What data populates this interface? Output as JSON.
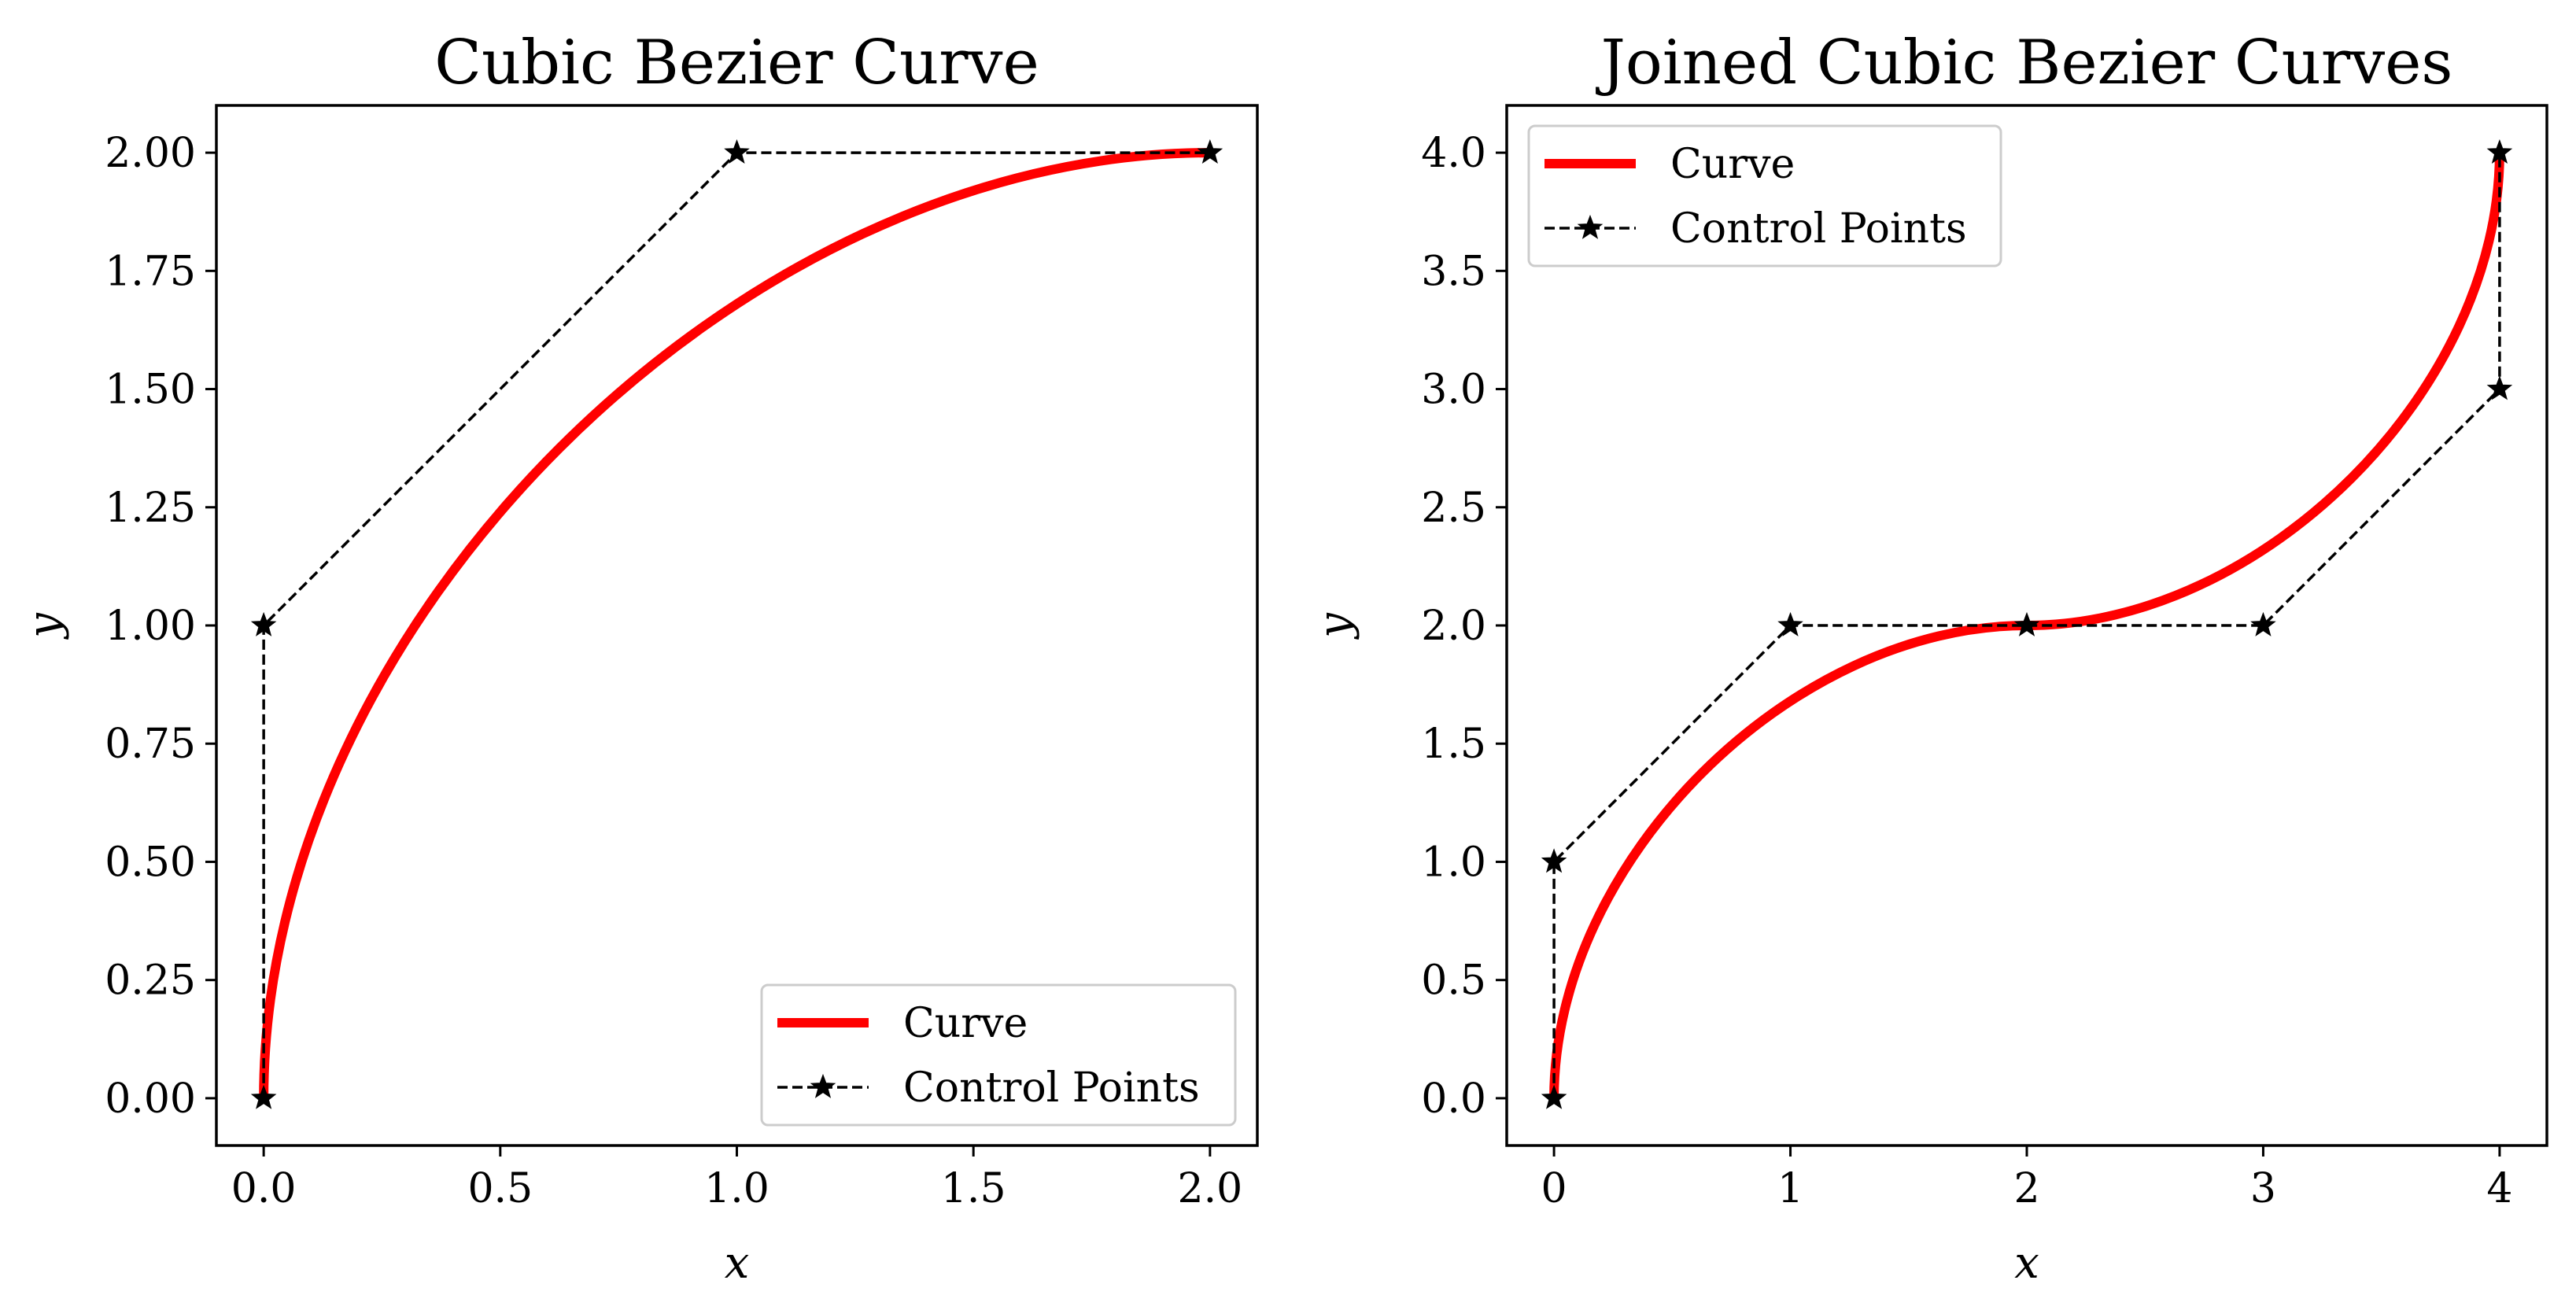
{
  "chart_data": [
    {
      "type": "line",
      "title": "Cubic Bezier Curve",
      "xlabel": "x",
      "ylabel": "y",
      "xlim": [
        -0.1,
        2.1
      ],
      "ylim": [
        -0.1,
        2.1
      ],
      "xticks": [
        0.0,
        0.5,
        1.0,
        1.5,
        2.0
      ],
      "xtick_labels": [
        "0.0",
        "0.5",
        "1.0",
        "1.5",
        "2.0"
      ],
      "yticks": [
        0.0,
        0.25,
        0.5,
        0.75,
        1.0,
        1.25,
        1.5,
        1.75,
        2.0
      ],
      "ytick_labels": [
        "0.00",
        "0.25",
        "0.50",
        "0.75",
        "1.00",
        "1.25",
        "1.50",
        "1.75",
        "2.00"
      ],
      "legend": {
        "position": "lower-right",
        "entries": [
          "Curve",
          "Control Points"
        ]
      },
      "series": [
        {
          "name": "Curve",
          "color": "#ff0000",
          "style": "solid",
          "bezier": [
            [
              [
                0,
                0
              ],
              [
                0,
                1
              ],
              [
                1,
                2
              ],
              [
                2,
                2
              ]
            ]
          ]
        },
        {
          "name": "Control Points",
          "color": "#000000",
          "style": "dashed",
          "marker": "star",
          "x": [
            0,
            0,
            1,
            2
          ],
          "y": [
            0,
            1,
            2,
            2
          ]
        }
      ]
    },
    {
      "type": "line",
      "title": "Joined Cubic Bezier Curves",
      "xlabel": "x",
      "ylabel": "y",
      "xlim": [
        -0.2,
        4.2
      ],
      "ylim": [
        -0.2,
        4.2
      ],
      "xticks": [
        0,
        1,
        2,
        3,
        4
      ],
      "xtick_labels": [
        "0",
        "1",
        "2",
        "3",
        "4"
      ],
      "yticks": [
        0.0,
        0.5,
        1.0,
        1.5,
        2.0,
        2.5,
        3.0,
        3.5,
        4.0
      ],
      "ytick_labels": [
        "0.0",
        "0.5",
        "1.0",
        "1.5",
        "2.0",
        "2.5",
        "3.0",
        "3.5",
        "4.0"
      ],
      "legend": {
        "position": "upper-left",
        "entries": [
          "Curve",
          "Control Points"
        ]
      },
      "series": [
        {
          "name": "Curve",
          "color": "#ff0000",
          "style": "solid",
          "bezier": [
            [
              [
                0,
                0
              ],
              [
                0,
                1
              ],
              [
                1,
                2
              ],
              [
                2,
                2
              ]
            ],
            [
              [
                2,
                2
              ],
              [
                3,
                2
              ],
              [
                4,
                3
              ],
              [
                4,
                4
              ]
            ]
          ]
        },
        {
          "name": "Control Points",
          "color": "#000000",
          "style": "dashed",
          "marker": "star",
          "x": [
            0,
            0,
            1,
            2,
            3,
            4,
            4
          ],
          "y": [
            0,
            1,
            2,
            2,
            2,
            3,
            4
          ]
        }
      ]
    }
  ]
}
